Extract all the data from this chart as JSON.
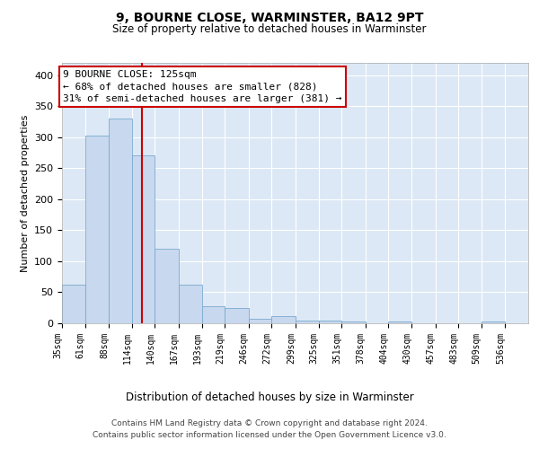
{
  "title1": "9, BOURNE CLOSE, WARMINSTER, BA12 9PT",
  "title2": "Size of property relative to detached houses in Warminster",
  "xlabel": "Distribution of detached houses by size in Warminster",
  "ylabel": "Number of detached properties",
  "bar_color": "#c8d8ee",
  "bar_edge_color": "#7aaad0",
  "background_color": "#dce8f5",
  "grid_color": "#ffffff",
  "vline_x": 125,
  "vline_color": "#cc0000",
  "annotation_text": "9 BOURNE CLOSE: 125sqm\n← 68% of detached houses are smaller (828)\n31% of semi-detached houses are larger (381) →",
  "annotation_box_facecolor": "#ffffff",
  "annotation_box_edgecolor": "#cc0000",
  "bins": [
    35,
    61,
    88,
    114,
    140,
    167,
    193,
    219,
    246,
    272,
    299,
    325,
    351,
    378,
    404,
    430,
    457,
    483,
    509,
    536,
    562
  ],
  "values": [
    62,
    303,
    330,
    271,
    120,
    63,
    28,
    25,
    7,
    12,
    4,
    4,
    3,
    0,
    3,
    0,
    0,
    0,
    3,
    0
  ],
  "ylim": [
    0,
    420
  ],
  "yticks": [
    0,
    50,
    100,
    150,
    200,
    250,
    300,
    350,
    400
  ],
  "footnote_line1": "Contains HM Land Registry data © Crown copyright and database right 2024.",
  "footnote_line2": "Contains public sector information licensed under the Open Government Licence v3.0."
}
